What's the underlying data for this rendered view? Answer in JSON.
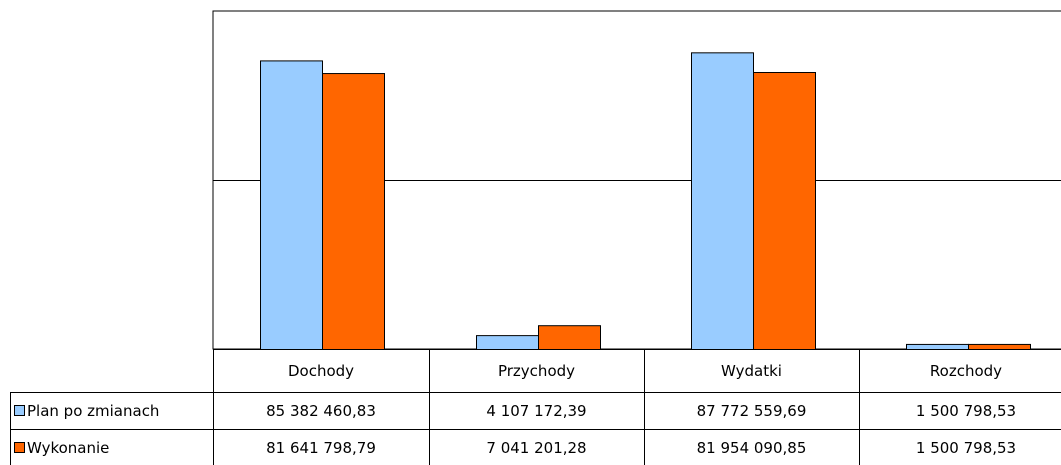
{
  "chart_data": {
    "type": "bar",
    "categories": [
      "Dochody",
      "Przychody",
      "Wydatki",
      "Rozchody"
    ],
    "series": [
      {
        "name": "Plan po zmianach",
        "color": "#99ccff",
        "values": [
          85382460.83,
          4107172.39,
          87772559.69,
          1500798.53
        ],
        "labels": [
          "85 382 460,83",
          "4 107 172,39",
          "87 772 559,69",
          "1 500 798,53"
        ]
      },
      {
        "name": "Wykonanie",
        "color": "#ff6600",
        "values": [
          81641798.79,
          7041201.28,
          81954090.85,
          1500798.53
        ],
        "labels": [
          "81 641 798,79",
          "7 041 201,28",
          "81 954 090,85",
          "1 500 798,53"
        ]
      }
    ],
    "ylim": [
      0,
      100000000
    ],
    "gridlines": [
      50000000
    ],
    "legend": "data-table-left",
    "data_table": true
  }
}
